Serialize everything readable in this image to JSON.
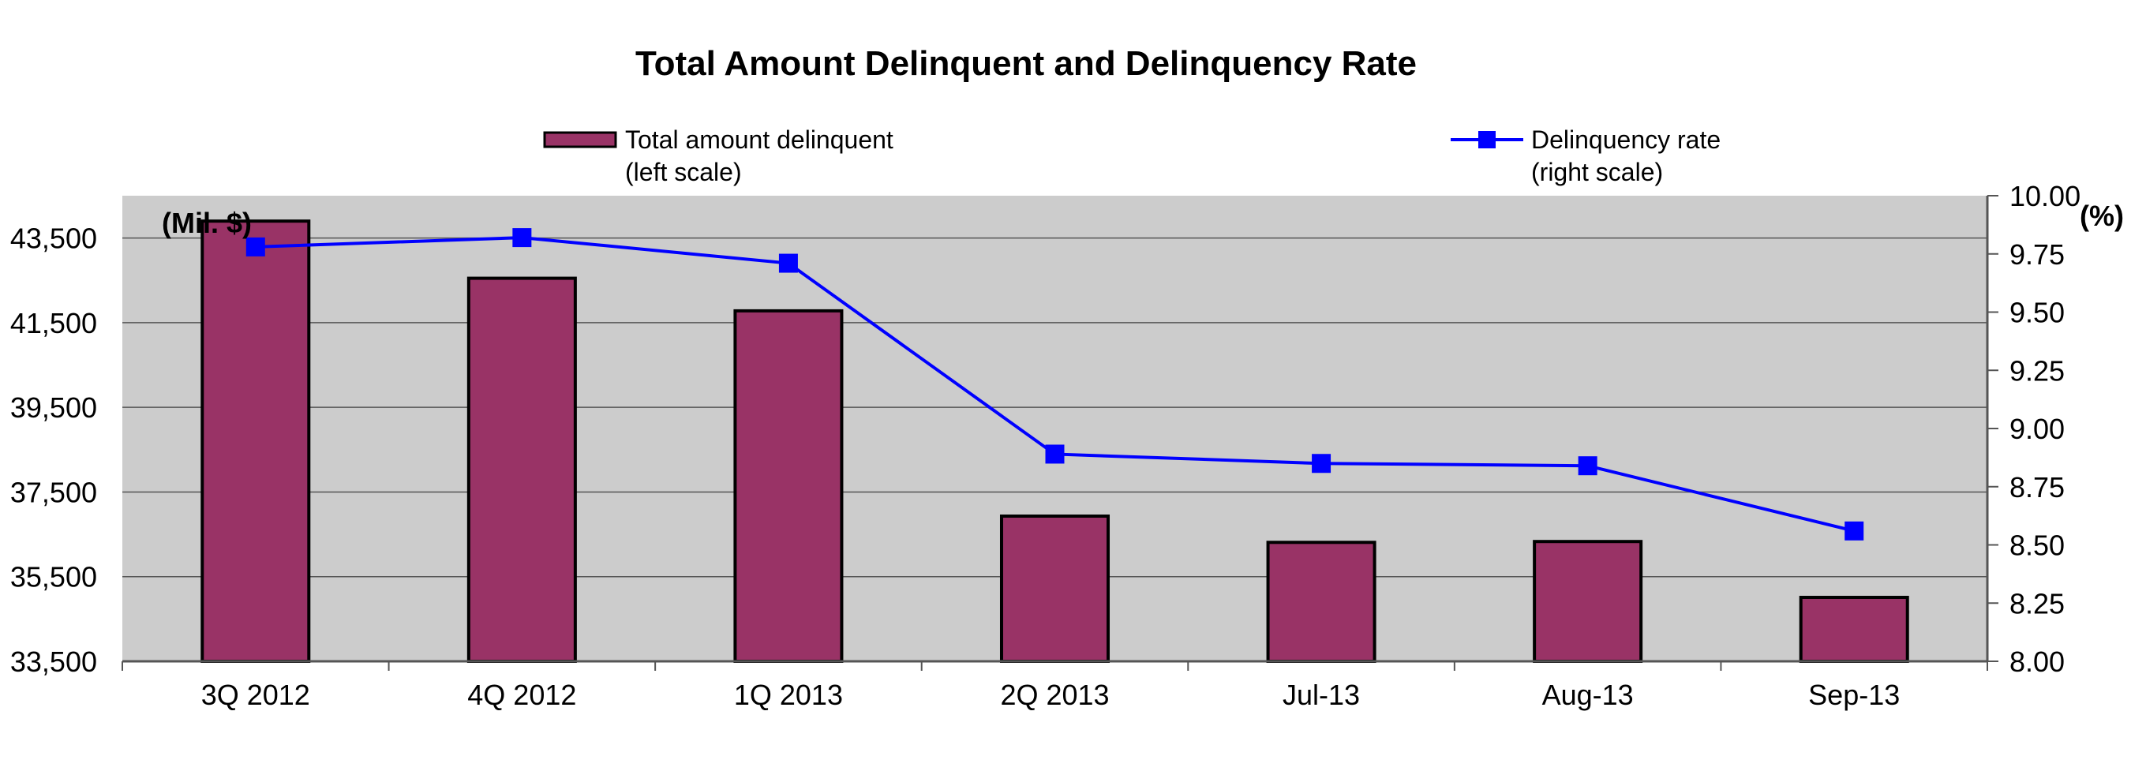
{
  "chart_data": {
    "type": "bar+line",
    "title": "Total Amount Delinquent and Delinquency Rate",
    "categories": [
      "3Q 2012",
      "4Q 2012",
      "1Q 2013",
      "2Q 2013",
      "Jul-13",
      "Aug-13",
      "Sep-13"
    ],
    "series": [
      {
        "name_lines": [
          "Total amount delinquent",
          "(left scale)"
        ],
        "type": "bar",
        "axis": "left",
        "color": "#993366",
        "values": [
          43900,
          42550,
          41780,
          36930,
          36310,
          36330,
          35010
        ]
      },
      {
        "name_lines": [
          "Delinquency rate",
          "(right scale)"
        ],
        "type": "line",
        "axis": "right",
        "color": "#0000ff",
        "values": [
          9.78,
          9.82,
          9.71,
          8.89,
          8.85,
          8.84,
          8.56
        ]
      }
    ],
    "left_axis": {
      "unit_label": "(Mil. $)",
      "range": [
        33500,
        44500
      ],
      "ticks": [
        33500,
        35500,
        37500,
        39500,
        41500,
        43500
      ],
      "tick_labels": [
        "33,500",
        "35,500",
        "37,500",
        "39,500",
        "41,500",
        "43,500"
      ]
    },
    "right_axis": {
      "unit_label": "(%)",
      "range": [
        8.0,
        10.0
      ],
      "ticks": [
        8.0,
        8.25,
        8.5,
        8.75,
        9.0,
        9.25,
        9.5,
        9.75,
        10.0
      ],
      "tick_labels": [
        "8.00",
        "8.25",
        "8.50",
        "8.75",
        "9.00",
        "9.25",
        "9.50",
        "9.75",
        "10.00"
      ]
    },
    "grid": true,
    "plot_background": "#cccccc",
    "legend_position": "top"
  }
}
